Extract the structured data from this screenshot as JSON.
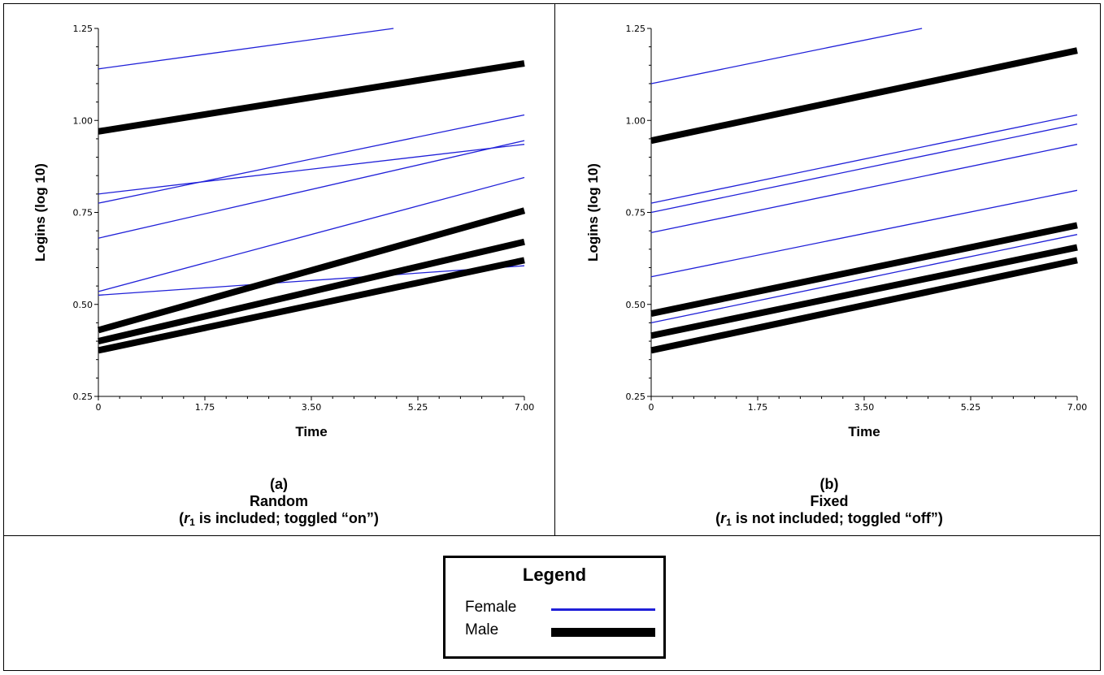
{
  "chart_data": [
    {
      "type": "line",
      "panel_label": "(a)",
      "subtitle": "Random",
      "note_pre": "(",
      "note_var": "r",
      "note_sub": "1",
      "note_post": " is included; toggled “on”)",
      "xlabel": "Time",
      "ylabel": "Logins (log 10)",
      "xlim": [
        0,
        7
      ],
      "ylim": [
        0.25,
        1.25
      ],
      "xticks": [
        "0",
        "1.75",
        "3.50",
        "5.25",
        "7.00"
      ],
      "yticks": [
        "0.25",
        "0.50",
        "0.75",
        "1.00",
        "1.25"
      ],
      "series": [
        {
          "group": "Female",
          "x": [
            0,
            4.85
          ],
          "y": [
            1.14,
            1.25
          ]
        },
        {
          "group": "Female",
          "x": [
            0,
            7
          ],
          "y": [
            0.775,
            1.015
          ]
        },
        {
          "group": "Female",
          "x": [
            0,
            7
          ],
          "y": [
            0.8,
            0.935
          ]
        },
        {
          "group": "Female",
          "x": [
            0,
            7
          ],
          "y": [
            0.68,
            0.945
          ]
        },
        {
          "group": "Female",
          "x": [
            0,
            7
          ],
          "y": [
            0.535,
            0.845
          ]
        },
        {
          "group": "Female",
          "x": [
            0,
            7
          ],
          "y": [
            0.525,
            0.605
          ]
        },
        {
          "group": "Male",
          "x": [
            0,
            7
          ],
          "y": [
            0.97,
            1.155
          ]
        },
        {
          "group": "Male",
          "x": [
            0,
            7
          ],
          "y": [
            0.43,
            0.755
          ]
        },
        {
          "group": "Male",
          "x": [
            0,
            7
          ],
          "y": [
            0.4,
            0.67
          ]
        },
        {
          "group": "Male",
          "x": [
            0,
            7
          ],
          "y": [
            0.375,
            0.62
          ]
        }
      ]
    },
    {
      "type": "line",
      "panel_label": "(b)",
      "subtitle": "Fixed",
      "note_pre": "(",
      "note_var": "r",
      "note_sub": "1",
      "note_post": " is not included; toggled “off”)",
      "xlabel": "Time",
      "ylabel": "Logins (log 10)",
      "xlim": [
        0,
        7
      ],
      "ylim": [
        0.25,
        1.25
      ],
      "xticks": [
        "0",
        "1.75",
        "3.50",
        "5.25",
        "7.00"
      ],
      "yticks": [
        "0.25",
        "0.50",
        "0.75",
        "1.00",
        "1.25"
      ],
      "series": [
        {
          "group": "Female",
          "x": [
            0,
            4.45
          ],
          "y": [
            1.1,
            1.25
          ]
        },
        {
          "group": "Female",
          "x": [
            0,
            7
          ],
          "y": [
            0.775,
            1.015
          ]
        },
        {
          "group": "Female",
          "x": [
            0,
            7
          ],
          "y": [
            0.75,
            0.99
          ]
        },
        {
          "group": "Female",
          "x": [
            0,
            7
          ],
          "y": [
            0.695,
            0.935
          ]
        },
        {
          "group": "Female",
          "x": [
            0,
            7
          ],
          "y": [
            0.575,
            0.81
          ]
        },
        {
          "group": "Female",
          "x": [
            0,
            7
          ],
          "y": [
            0.45,
            0.69
          ]
        },
        {
          "group": "Male",
          "x": [
            0,
            7
          ],
          "y": [
            0.945,
            1.19
          ]
        },
        {
          "group": "Male",
          "x": [
            0,
            7
          ],
          "y": [
            0.475,
            0.715
          ]
        },
        {
          "group": "Male",
          "x": [
            0,
            7
          ],
          "y": [
            0.415,
            0.655
          ]
        },
        {
          "group": "Male",
          "x": [
            0,
            7
          ],
          "y": [
            0.375,
            0.62
          ]
        }
      ]
    }
  ],
  "legend": {
    "title": "Legend",
    "items": [
      {
        "label": "Female",
        "color": "#2020d8",
        "weight": "thin"
      },
      {
        "label": "Male",
        "color": "#000000",
        "weight": "thick"
      }
    ]
  },
  "colors": {
    "female": "#2020d8",
    "male": "#000000"
  }
}
